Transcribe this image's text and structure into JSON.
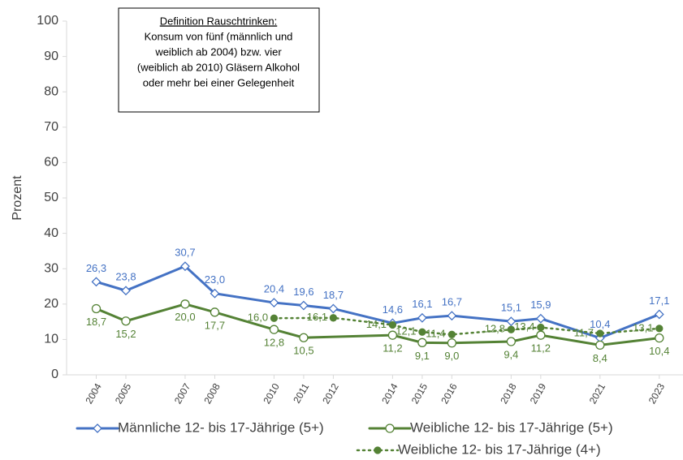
{
  "chart_data": {
    "type": "line",
    "ylabel": "Prozent",
    "annotation": {
      "title": "Definition Rauschtrinken:",
      "lines": [
        "Konsum von fünf (männlich und",
        "weiblich ab 2004) bzw. vier",
        "(weiblich ab 2010) Gläsern Alkohol",
        "oder mehr bei einer Gelegenheit"
      ]
    },
    "xlim": [
      2003,
      2023.8
    ],
    "xticks": [
      2004,
      2005,
      2007,
      2008,
      2010,
      2011,
      2012,
      2014,
      2015,
      2016,
      2018,
      2019,
      2021,
      2023
    ],
    "ylim": [
      0,
      100
    ],
    "yticks": [
      0,
      10,
      20,
      30,
      40,
      50,
      60,
      70,
      80,
      90,
      100
    ],
    "legend": "bottom",
    "series": [
      {
        "name": "Männliche 12- bis 17-Jährige (5+)",
        "color": "#4472c4",
        "marker": "diamond",
        "linestyle": "solid",
        "x": [
          2004,
          2005,
          2007,
          2008,
          2010,
          2011,
          2012,
          2014,
          2015,
          2016,
          2018,
          2019,
          2021,
          2023
        ],
        "values": [
          26.3,
          23.8,
          30.7,
          23.0,
          20.4,
          19.6,
          18.7,
          14.6,
          16.1,
          16.7,
          15.1,
          15.9,
          10.4,
          17.1
        ],
        "value_labels": [
          "26,3",
          "23,8",
          "30,7",
          "23,0",
          "20,4",
          "19,6",
          "18,7",
          "14,6",
          "16,1",
          "16,7",
          "15,1",
          "15,9",
          "10,4",
          "17,1"
        ]
      },
      {
        "name": "Weibliche 12- bis 17-Jährige (5+)",
        "color": "#548235",
        "marker": "circle",
        "linestyle": "solid",
        "x": [
          2004,
          2005,
          2007,
          2008,
          2010,
          2011,
          2014,
          2015,
          2016,
          2018,
          2019,
          2021,
          2023
        ],
        "values": [
          18.7,
          15.2,
          20.0,
          17.7,
          12.8,
          10.5,
          11.2,
          9.1,
          9.0,
          9.4,
          11.2,
          8.4,
          10.4
        ],
        "value_labels": [
          "18,7",
          "15,2",
          "20,0",
          "17,7",
          "12,8",
          "10,5",
          "11,2",
          "9,1",
          "9,0",
          "9,4",
          "11,2",
          "8,4",
          "10,4"
        ]
      },
      {
        "name": "Weibliche 12- bis 17-Jährige (4+)",
        "color": "#548235",
        "marker": "dot",
        "linestyle": "dotted",
        "x": [
          2010,
          2012,
          2014,
          2015,
          2016,
          2018,
          2019,
          2021,
          2023
        ],
        "values": [
          16.0,
          16.1,
          14.1,
          12.1,
          11.4,
          12.8,
          13.4,
          11.7,
          13.1
        ],
        "value_labels": [
          "16,0",
          "16,1",
          "14,1",
          "12,1",
          "11,4",
          "12,8",
          "13,4",
          "11,7",
          "13,1"
        ]
      }
    ]
  }
}
